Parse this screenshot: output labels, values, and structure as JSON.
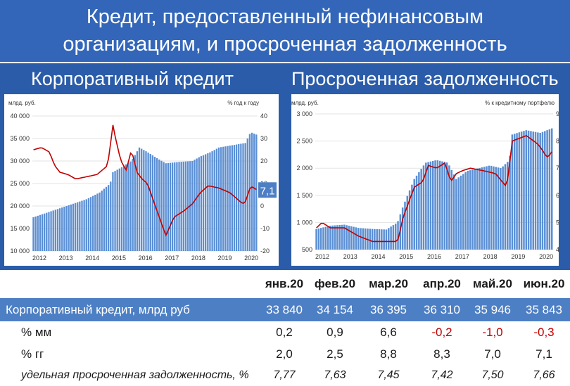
{
  "title": {
    "line1": "Кредит, предоставленный нефинансовым",
    "line2": "организациям, и просроченная задолженность"
  },
  "subtitles": {
    "left": "Корпоративный кредит",
    "right": "Просроченная задолженность"
  },
  "colors": {
    "bars": "#5b8fd4",
    "line": "#c00000",
    "title_bg": "#3366b8",
    "negative": "#c00000"
  },
  "chart_data": [
    {
      "type": "bar",
      "title": "",
      "y_left_label": "млрд. руб.",
      "y_right_label": "% год к году",
      "ylim_left": [
        10000,
        40000
      ],
      "ylim_right": [
        -20,
        40
      ],
      "yticks_left": [
        "10 000",
        "15 000",
        "20 000",
        "25 000",
        "30 000",
        "35 000",
        "40 000"
      ],
      "yticks_right": [
        "-20",
        "-10",
        "0",
        "10",
        "20",
        "30",
        "40"
      ],
      "x_ticks": [
        "2012",
        "2013",
        "2014",
        "2015",
        "2016",
        "2017",
        "2018",
        "2019",
        "2020"
      ],
      "x_start_year": 2012,
      "last_value_label": "7,1",
      "series": [
        {
          "kind": "bar",
          "axis": "left",
          "anchors": [
            [
              2012.0,
              17500
            ],
            [
              2012.5,
              18500
            ],
            [
              2013.0,
              19500
            ],
            [
              2013.5,
              20500
            ],
            [
              2014.0,
              21500
            ],
            [
              2014.5,
              23000
            ],
            [
              2014.9,
              25000
            ],
            [
              2015.0,
              27500
            ],
            [
              2015.3,
              28500
            ],
            [
              2015.7,
              30000
            ],
            [
              2016.0,
              33000
            ],
            [
              2016.3,
              32000
            ],
            [
              2016.7,
              30500
            ],
            [
              2017.0,
              29500
            ],
            [
              2017.5,
              29800
            ],
            [
              2018.0,
              30000
            ],
            [
              2018.3,
              31000
            ],
            [
              2018.7,
              32000
            ],
            [
              2019.0,
              33000
            ],
            [
              2019.5,
              33500
            ],
            [
              2020.0,
              34000
            ],
            [
              2020.2,
              36400
            ],
            [
              2020.45,
              35800
            ]
          ]
        },
        {
          "kind": "line",
          "axis": "right",
          "anchors": [
            [
              2012.0,
              25
            ],
            [
              2012.3,
              26
            ],
            [
              2012.6,
              24
            ],
            [
              2012.8,
              18
            ],
            [
              2013.0,
              15
            ],
            [
              2013.3,
              14
            ],
            [
              2013.6,
              12
            ],
            [
              2014.0,
              13
            ],
            [
              2014.4,
              14
            ],
            [
              2014.8,
              18
            ],
            [
              2015.0,
              36
            ],
            [
              2015.1,
              30
            ],
            [
              2015.3,
              20
            ],
            [
              2015.5,
              16
            ],
            [
              2015.7,
              25
            ],
            [
              2015.9,
              15
            ],
            [
              2016.1,
              12
            ],
            [
              2016.3,
              10
            ],
            [
              2016.6,
              0
            ],
            [
              2016.9,
              -10
            ],
            [
              2017.0,
              -13
            ],
            [
              2017.3,
              -5
            ],
            [
              2017.7,
              -2
            ],
            [
              2018.0,
              1
            ],
            [
              2018.3,
              6
            ],
            [
              2018.6,
              9
            ],
            [
              2019.0,
              8
            ],
            [
              2019.4,
              6
            ],
            [
              2019.7,
              3
            ],
            [
              2019.9,
              1
            ],
            [
              2020.0,
              2
            ],
            [
              2020.2,
              8.8
            ],
            [
              2020.45,
              7.1
            ]
          ]
        }
      ]
    },
    {
      "type": "bar",
      "title": "",
      "y_left_label": "млрд. руб.",
      "y_right_label": "% к кредитному портфелю",
      "ylim_left": [
        500,
        3000
      ],
      "ylim_right": [
        4,
        9
      ],
      "yticks_left": [
        "500",
        "1 000",
        "1 500",
        "2 000",
        "2 500",
        "3 000"
      ],
      "yticks_right": [
        "4",
        "5",
        "6",
        "7",
        "8",
        "9"
      ],
      "x_ticks": [
        "2012",
        "2013",
        "2014",
        "2015",
        "2016",
        "2017",
        "2018",
        "2019",
        "2020"
      ],
      "x_start_year": 2012,
      "series": [
        {
          "kind": "bar",
          "axis": "left",
          "anchors": [
            [
              2012.0,
              880
            ],
            [
              2012.5,
              940
            ],
            [
              2013.0,
              960
            ],
            [
              2013.5,
              900
            ],
            [
              2014.0,
              880
            ],
            [
              2014.5,
              870
            ],
            [
              2014.9,
              1000
            ],
            [
              2015.1,
              1300
            ],
            [
              2015.5,
              1800
            ],
            [
              2015.9,
              2100
            ],
            [
              2016.3,
              2150
            ],
            [
              2016.7,
              2100
            ],
            [
              2017.0,
              1800
            ],
            [
              2017.4,
              1950
            ],
            [
              2017.8,
              2000
            ],
            [
              2018.2,
              2050
            ],
            [
              2018.6,
              2000
            ],
            [
              2018.9,
              2150
            ],
            [
              2019.0,
              2620
            ],
            [
              2019.5,
              2700
            ],
            [
              2020.0,
              2650
            ],
            [
              2020.45,
              2740
            ]
          ]
        },
        {
          "kind": "line",
          "axis": "right",
          "anchors": [
            [
              2012.0,
              4.8
            ],
            [
              2012.2,
              5.0
            ],
            [
              2012.5,
              4.8
            ],
            [
              2013.0,
              4.8
            ],
            [
              2013.5,
              4.5
            ],
            [
              2014.0,
              4.3
            ],
            [
              2014.5,
              4.3
            ],
            [
              2014.9,
              4.3
            ],
            [
              2015.1,
              5.2
            ],
            [
              2015.5,
              6.3
            ],
            [
              2015.8,
              6.5
            ],
            [
              2016.0,
              7.1
            ],
            [
              2016.3,
              7.0
            ],
            [
              2016.6,
              7.2
            ],
            [
              2016.8,
              6.5
            ],
            [
              2017.0,
              6.8
            ],
            [
              2017.2,
              6.9
            ],
            [
              2017.5,
              7.0
            ],
            [
              2018.0,
              6.9
            ],
            [
              2018.4,
              6.8
            ],
            [
              2018.8,
              6.3
            ],
            [
              2019.0,
              8.0
            ],
            [
              2019.5,
              8.2
            ],
            [
              2019.9,
              7.9
            ],
            [
              2020.0,
              7.77
            ],
            [
              2020.1,
              7.63
            ],
            [
              2020.2,
              7.45
            ],
            [
              2020.25,
              7.42
            ],
            [
              2020.35,
              7.5
            ],
            [
              2020.45,
              7.66
            ]
          ]
        }
      ]
    }
  ],
  "table": {
    "months": [
      "янв.20",
      "фев.20",
      "мар.20",
      "апр.20",
      "май.20",
      "июн.20"
    ],
    "rows": [
      {
        "id": "corporate",
        "label": "Корпоративный кредит, млрд руб",
        "values": [
          "33 840",
          "34 154",
          "36 395",
          "36 310",
          "35 946",
          "35 843"
        ]
      },
      {
        "id": "mm",
        "label": "% мм",
        "values": [
          "0,2",
          "0,9",
          "6,6",
          "-0,2",
          "-1,0",
          "-0,3"
        ]
      },
      {
        "id": "gg",
        "label": "% гг",
        "values": [
          "2,0",
          "2,5",
          "8,8",
          "8,3",
          "7,0",
          "7,1"
        ]
      },
      {
        "id": "overdue",
        "label": "удельная просроченная задолженность, %",
        "values": [
          "7,77",
          "7,63",
          "7,45",
          "7,42",
          "7,50",
          "7,66"
        ]
      }
    ]
  }
}
